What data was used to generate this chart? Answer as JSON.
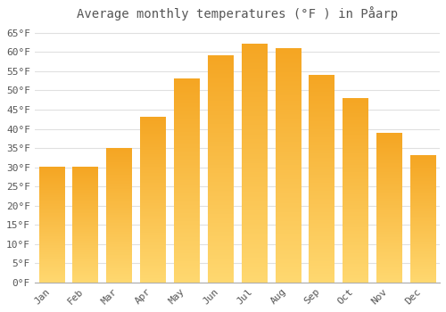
{
  "title": "Average monthly temperatures (°F ) in Påarp",
  "months": [
    "Jan",
    "Feb",
    "Mar",
    "Apr",
    "May",
    "Jun",
    "Jul",
    "Aug",
    "Sep",
    "Oct",
    "Nov",
    "Dec"
  ],
  "values": [
    30,
    30,
    35,
    43,
    53,
    59,
    62,
    61,
    54,
    48,
    39,
    33
  ],
  "bar_color_top": "#FFC84A",
  "bar_color_bottom": "#F5A623",
  "background_color": "#FFFFFF",
  "grid_color": "#E0E0E0",
  "text_color": "#555555",
  "ylim": [
    0,
    67
  ],
  "yticks": [
    0,
    5,
    10,
    15,
    20,
    25,
    30,
    35,
    40,
    45,
    50,
    55,
    60,
    65
  ],
  "title_fontsize": 10,
  "tick_fontsize": 8
}
